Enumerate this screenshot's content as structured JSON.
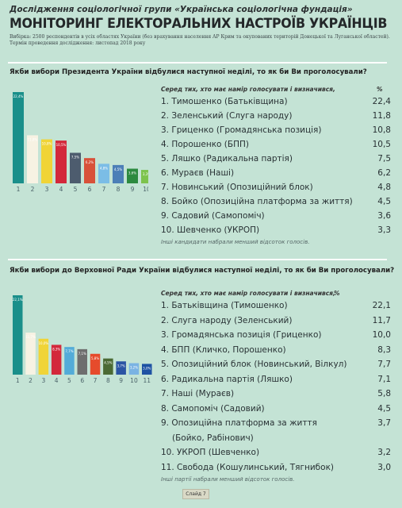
{
  "header": {
    "supertitle": "Дослідження соціологічної групи «Українська соціологічна фундація»",
    "title": "МОНІТОРИНГ ЕЛЕКТОРАЛЬНИХ НАСТРОЇВ УКРАЇНЦІВ",
    "sample_line1": "Вибірка: 2500 респондентів в усіх областях України (без врахування населення АР Крим та окупованих територій Донецької та Луганської областей).",
    "sample_line2": "Термін проведення дослідження: листопад 2018 року"
  },
  "presidential": {
    "question": "Якби вибори Президента України відбулися наступної неділі, то як би Ви проголосували?",
    "list_header": "Серед тих, хто має намір голосувати і визначився,",
    "pct_header": "%",
    "rows": [
      {
        "label": "1. Тимошенко (Батьківщина)",
        "value": "22,4"
      },
      {
        "label": "2. Зеленський  (Слуга народу)",
        "value": "11,8"
      },
      {
        "label": "3. Гриценко (Громадянська позиція)",
        "value": "10,8"
      },
      {
        "label": "4. Порошенко (БПП)",
        "value": "10,5"
      },
      {
        "label": "5. Ляшко (Радикальна партія)",
        "value": "7,5"
      },
      {
        "label": "6. Мураєв (Наші)",
        "value": "6,2"
      },
      {
        "label": "7. Новинський (Опозиційний блок)",
        "value": "4,8"
      },
      {
        "label": "8. Бойко (Опозиційна платформа за життя)",
        "value": "4,5"
      },
      {
        "label": "9. Садовий (Самопоміч)",
        "value": "3,6"
      },
      {
        "label": "10. Шевченко (УКРОП)",
        "value": "3,3"
      }
    ],
    "note": "Інші кандидати набрали менший відсоток голосів."
  },
  "parliament": {
    "question": "Якби вибори до Верховної Ради України відбулися наступної неділі, то як би Ви проголосували?",
    "list_header": "Серед тих, хто має намір голосувати і визначився,",
    "pct_header": "%",
    "rows": [
      {
        "label": "1. Батьківщина (Тимошенко)",
        "value": "22,1"
      },
      {
        "label": "2. Слуга народу  (Зеленський)",
        "value": "11,7"
      },
      {
        "label": "3. Громадянська позиція (Гриценко)",
        "value": "10,0"
      },
      {
        "label": "4. БПП (Кличко, Порошенко)",
        "value": "8,3"
      },
      {
        "label": "5. Опозиційний блок (Новинський, Вілкул)",
        "value": "7,7"
      },
      {
        "label": "6. Радикальна партія (Ляшко)",
        "value": "7,1"
      },
      {
        "label": "7. Наші  (Мураєв)",
        "value": "5,8"
      },
      {
        "label": "8. Самопоміч (Садовий)",
        "value": "4,5"
      },
      {
        "label": "9. Опозиційна платформа за життя",
        "label2": "(Бойко, Рабінович)",
        "value": "3,7"
      },
      {
        "label": "10. УКРОП (Шевченко)",
        "value": "3,2"
      },
      {
        "label": "11. Свобода (Кошулинський, Тягнибок)",
        "value": "3,0"
      }
    ],
    "note": "Інші партії набрали менший відсоток голосів."
  },
  "footer": {
    "label": "Слайд 7"
  },
  "chart_data": [
    {
      "type": "bar",
      "categories": [
        "1",
        "2",
        "3",
        "4",
        "5",
        "6",
        "7",
        "8",
        "9",
        "10"
      ],
      "values": [
        22.4,
        11.8,
        10.8,
        10.5,
        7.5,
        6.2,
        4.8,
        4.5,
        3.6,
        3.3
      ],
      "labels": [
        "22,4%",
        "11,8%",
        "10,8%",
        "10,5%",
        "7,5%",
        "6,2%",
        "4,8%",
        "4,5%",
        "3,6%",
        "3,3%"
      ],
      "colors": [
        "#1a8f8a",
        "#f7f2e3",
        "#f0d437",
        "#d3283b",
        "#4d5c6e",
        "#d8513a",
        "#7bbde6",
        "#4c7fb7",
        "#2c8a3f",
        "#7dc34d"
      ],
      "ylim": [
        0,
        22.4
      ]
    },
    {
      "type": "bar",
      "categories": [
        "1",
        "2",
        "3",
        "4",
        "5",
        "6",
        "7",
        "8",
        "9",
        "10",
        "11"
      ],
      "values": [
        22.1,
        11.7,
        10.0,
        8.3,
        7.7,
        7.1,
        5.8,
        4.5,
        3.7,
        3.2,
        3.0
      ],
      "labels": [
        "22,1%",
        "11,7%",
        "10,0%",
        "8,3%",
        "7,7%",
        "7,1%",
        "5,8%",
        "4,5%",
        "3,7%",
        "3,2%",
        "3,0%"
      ],
      "colors": [
        "#1a8f8a",
        "#f7f2e3",
        "#f0d437",
        "#d3283b",
        "#53acd8",
        "#6e6e6e",
        "#e64b2c",
        "#4b6a34",
        "#2b54a4",
        "#7ab3e3",
        "#1e52a3"
      ],
      "ylim": [
        0,
        22.1
      ]
    }
  ]
}
